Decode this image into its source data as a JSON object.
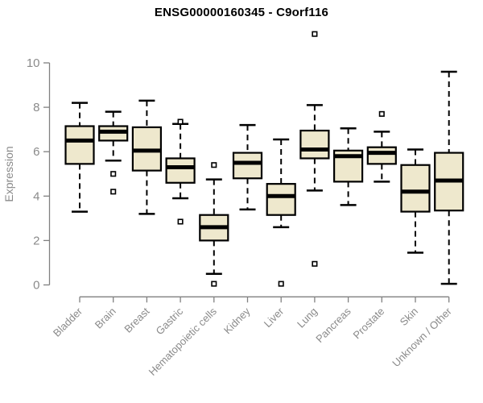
{
  "chart_data": {
    "type": "boxplot",
    "title": "ENSG00000160345 - C9orf116",
    "ylabel": "Expression",
    "ylim": [
      0,
      10
    ],
    "yticks": [
      0,
      2,
      4,
      6,
      8,
      10
    ],
    "grid": false,
    "legend": "none",
    "categories": [
      "Bladder",
      "Brain",
      "Breast",
      "Gastric",
      "Hematopoietic cells",
      "Kidney",
      "Liver",
      "Lung",
      "Pancreas",
      "Prostate",
      "Skin",
      "Unknown / Other"
    ],
    "series": [
      {
        "name": "Bladder",
        "whisker_low": 3.3,
        "q1": 5.45,
        "median": 6.5,
        "q3": 7.15,
        "whisker_high": 8.2,
        "outliers": []
      },
      {
        "name": "Brain",
        "whisker_low": 5.6,
        "q1": 6.5,
        "median": 6.9,
        "q3": 7.15,
        "whisker_high": 7.8,
        "outliers": [
          5.0,
          4.2
        ]
      },
      {
        "name": "Breast",
        "whisker_low": 3.2,
        "q1": 5.15,
        "median": 6.05,
        "q3": 7.1,
        "whisker_high": 8.3,
        "outliers": []
      },
      {
        "name": "Gastric",
        "whisker_low": 3.9,
        "q1": 4.6,
        "median": 5.3,
        "q3": 5.7,
        "whisker_high": 7.25,
        "outliers": [
          7.35,
          2.85
        ]
      },
      {
        "name": "Hematopoietic cells",
        "whisker_low": 0.5,
        "q1": 2.0,
        "median": 2.6,
        "q3": 3.15,
        "whisker_high": 4.75,
        "outliers": [
          5.4,
          0.05
        ]
      },
      {
        "name": "Kidney",
        "whisker_low": 3.4,
        "q1": 4.8,
        "median": 5.5,
        "q3": 5.95,
        "whisker_high": 7.2,
        "outliers": []
      },
      {
        "name": "Liver",
        "whisker_low": 2.6,
        "q1": 3.15,
        "median": 4.0,
        "q3": 4.55,
        "whisker_high": 6.55,
        "outliers": [
          0.05
        ]
      },
      {
        "name": "Lung",
        "whisker_low": 4.25,
        "q1": 5.7,
        "median": 6.1,
        "q3": 6.95,
        "whisker_high": 8.1,
        "outliers": [
          11.3,
          0.95
        ]
      },
      {
        "name": "Pancreas",
        "whisker_low": 3.6,
        "q1": 4.65,
        "median": 5.8,
        "q3": 6.05,
        "whisker_high": 7.05,
        "outliers": []
      },
      {
        "name": "Prostate",
        "whisker_low": 4.65,
        "q1": 5.45,
        "median": 5.95,
        "q3": 6.2,
        "whisker_high": 6.9,
        "outliers": [
          7.7
        ]
      },
      {
        "name": "Skin",
        "whisker_low": 1.45,
        "q1": 3.3,
        "median": 4.2,
        "q3": 5.4,
        "whisker_high": 6.1,
        "outliers": []
      },
      {
        "name": "Unknown / Other",
        "whisker_low": 0.05,
        "q1": 3.35,
        "median": 4.7,
        "q3": 5.95,
        "whisker_high": 9.6,
        "outliers": []
      }
    ]
  },
  "colors": {
    "background": "#FFFFFF",
    "box_fill": "#EEE8CD",
    "box_border": "#000000",
    "median": "#000000",
    "whisker": "#000000",
    "axis": "#808080",
    "tick_label": "#8A8A8A",
    "title": "#000000"
  }
}
